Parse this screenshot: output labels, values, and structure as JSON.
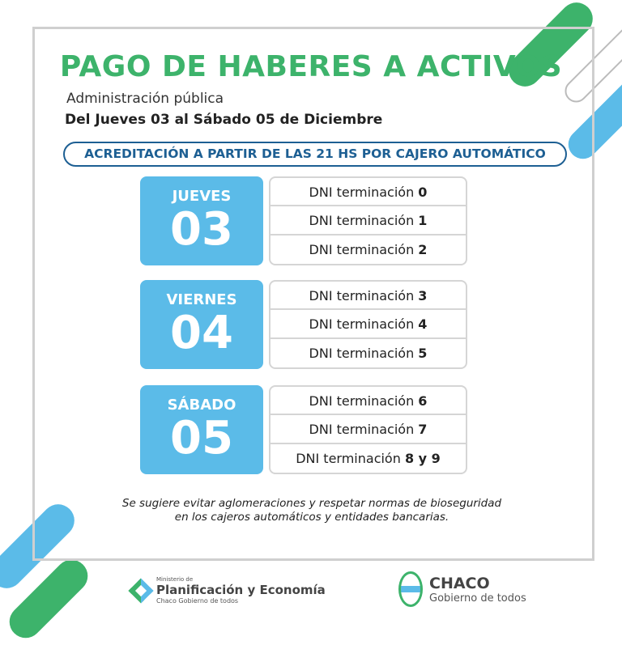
{
  "title": "PAGO DE HABERES A ACTIVOS",
  "subtitle": "Administración pública",
  "dates": "Del Jueves 03 al Sábado 05 de Diciembre",
  "notice": "ACREDITACIÓN A PARTIR DE LAS 21 HS POR CAJERO AUTOMÁTICO",
  "row_prefix": "DNI terminación",
  "days": [
    {
      "name": "JUEVES",
      "number": "03",
      "endings": [
        "0",
        "1",
        "2"
      ]
    },
    {
      "name": "VIERNES",
      "number": "04",
      "endings": [
        "3",
        "4",
        "5"
      ]
    },
    {
      "name": "SÁBADO",
      "number": "05",
      "endings": [
        "6",
        "7",
        "8 y 9"
      ]
    }
  ],
  "footnote": "Se sugiere evitar aglomeraciones y respetar normas de bioseguridad en los cajeros automáticos y entidades bancarias.",
  "footer": {
    "ministry_small": "Ministerio de",
    "ministry_name": "Planificación y Economía",
    "ministry_tag": "Chaco Gobierno de todos",
    "gov_name": "CHACO",
    "gov_tag": "Gobierno de todos"
  },
  "colors": {
    "green": "#3db36b",
    "blue": "#5bbbe8",
    "navy": "#1d5f93"
  }
}
